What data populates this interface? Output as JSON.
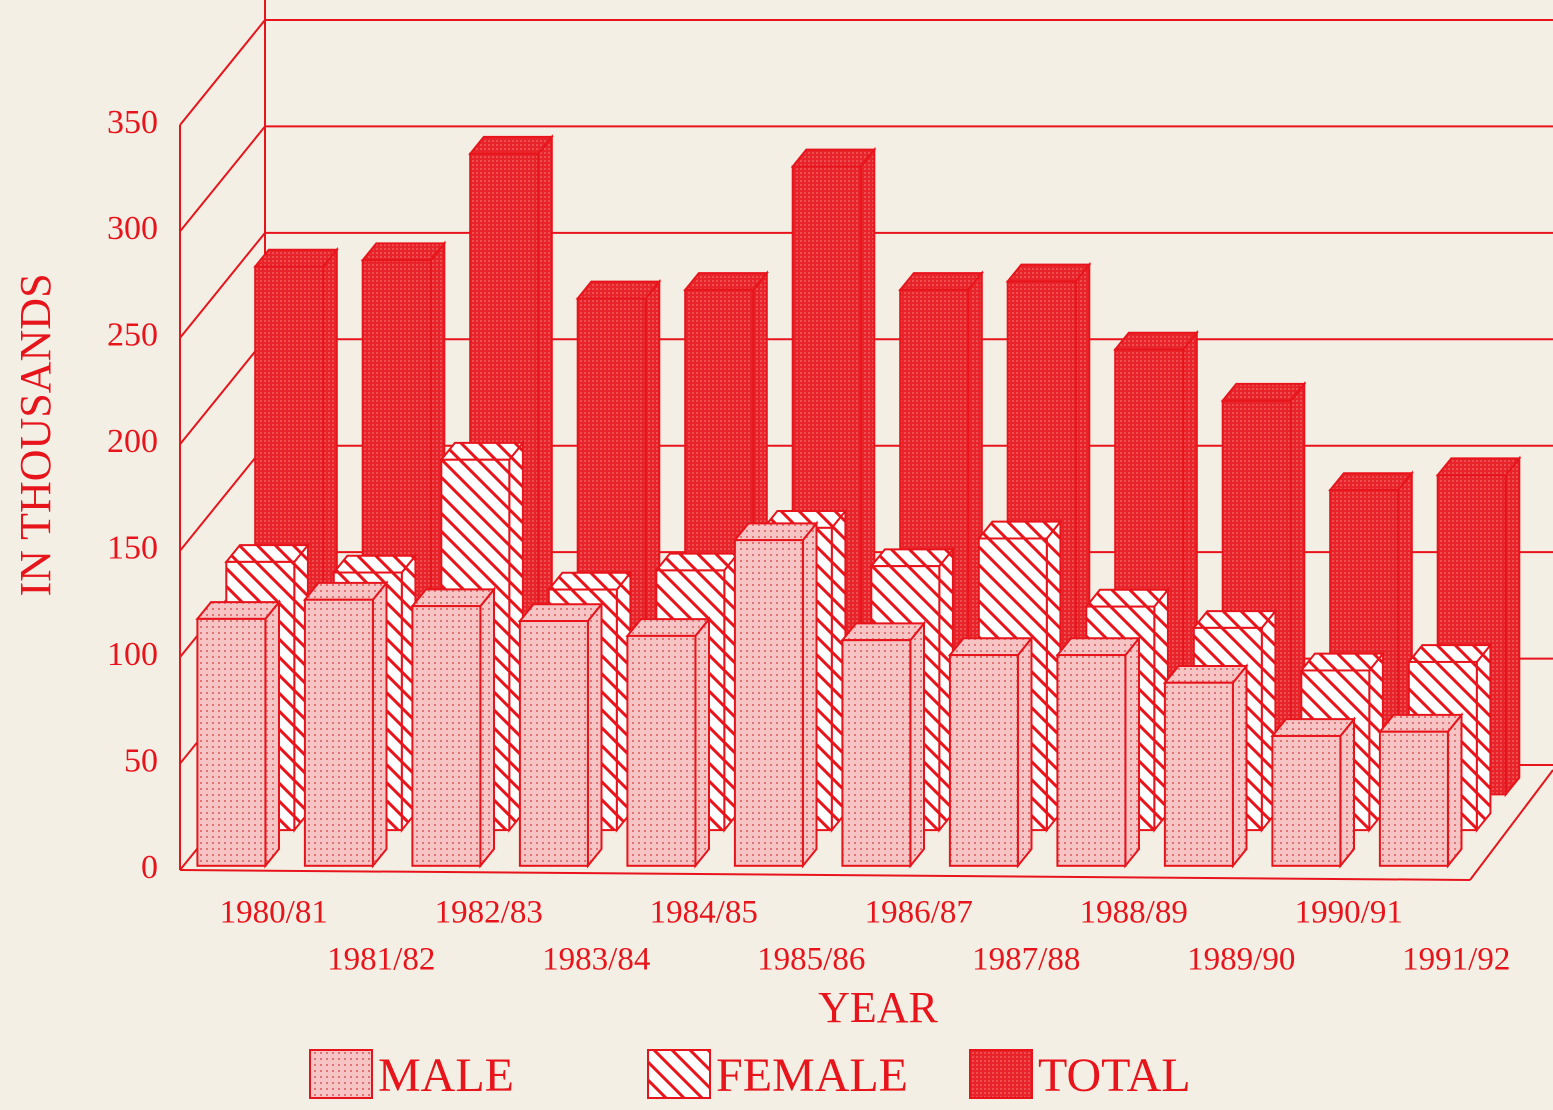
{
  "chart_data": {
    "type": "bar3d",
    "y_label": "IN THOUSANDS",
    "x_label": "YEAR",
    "categories": [
      "1980/81",
      "1981/82",
      "1982/83",
      "1983/84",
      "1984/85",
      "1985/86",
      "1986/87",
      "1987/88",
      "1988/89",
      "1989/90",
      "1990/91",
      "1991/92"
    ],
    "series": [
      {
        "name": "MALE",
        "color": "#f4b4b4",
        "values": [
          116,
          125,
          122,
          115,
          108,
          153,
          106,
          99,
          99,
          86,
          61,
          63
        ]
      },
      {
        "name": "FEMALE",
        "color": "#ffffff",
        "values": [
          126,
          121,
          174,
          113,
          122,
          142,
          124,
          137,
          105,
          95,
          75,
          79
        ]
      },
      {
        "name": "TOTAL",
        "color": "#e8242a",
        "values": [
          248,
          251,
          301,
          233,
          237,
          295,
          237,
          241,
          209,
          185,
          143,
          150
        ]
      }
    ],
    "ylim": [
      0,
      350
    ],
    "yticks": [
      0,
      50,
      100,
      150,
      200,
      250,
      300,
      350
    ],
    "grid": true,
    "legend": "bottom"
  }
}
